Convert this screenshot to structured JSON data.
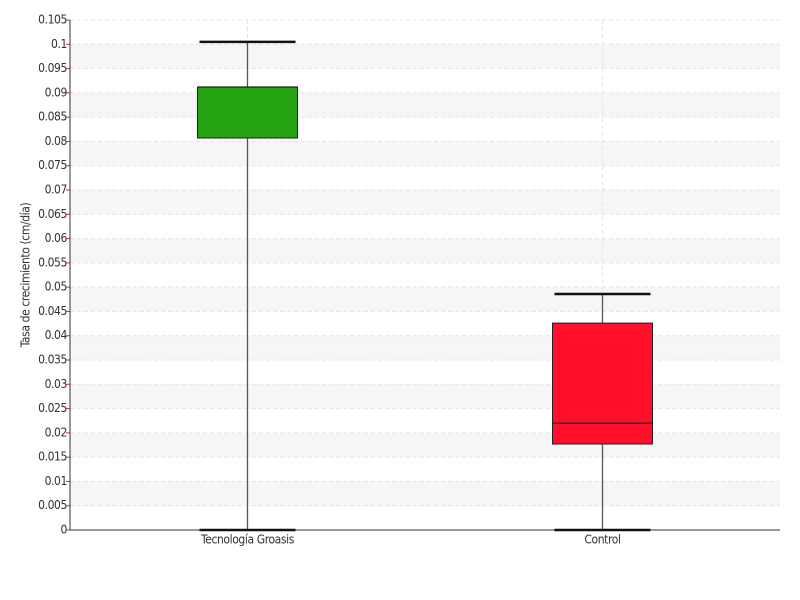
{
  "chart_data": {
    "type": "box",
    "y_label": "Tasa de crecimiento (cm/día)",
    "boxes": [
      {
        "name": "Tecnología Groasis",
        "color": "#22a30f",
        "min": 0,
        "q1": 0.0807,
        "median": 0.0912,
        "q3": 0.0912,
        "max": 0.1005
      },
      {
        "name": "Control",
        "color": "#ff0f2b",
        "min": 0,
        "q1": 0.0177,
        "median": 0.022,
        "q3": 0.0426,
        "max": 0.0486
      }
    ],
    "ylim": [
      0,
      0.105
    ],
    "yticks": [
      0,
      0.005,
      0.01,
      0.015,
      0.02,
      0.025,
      0.03,
      0.035,
      0.04,
      0.045,
      0.05,
      0.055,
      0.06,
      0.065,
      0.07,
      0.075,
      0.08,
      0.085,
      0.09,
      0.095,
      0.1,
      0.105
    ],
    "grid": true
  }
}
